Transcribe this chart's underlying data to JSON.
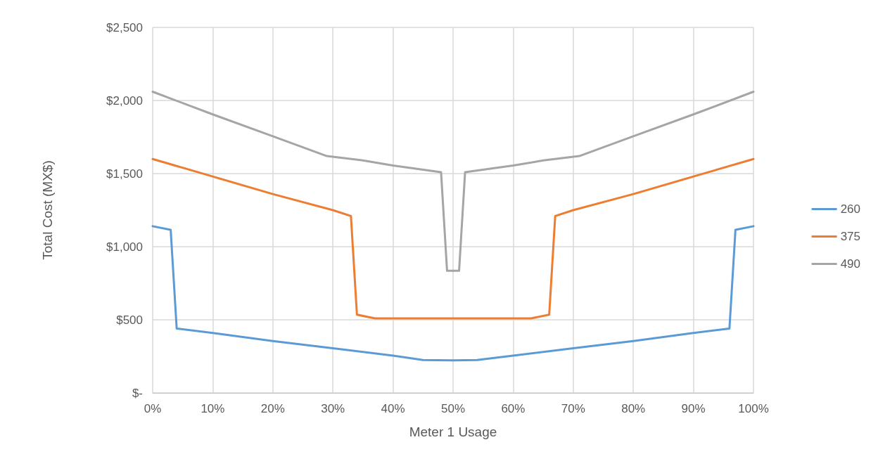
{
  "chart_data": {
    "type": "line",
    "xlabel": "Meter 1 Usage",
    "ylabel": "Total Cost (MX$)",
    "xlim": [
      0,
      100
    ],
    "xticks": [
      {
        "value": 0,
        "label": "0%"
      },
      {
        "value": 10,
        "label": "10%"
      },
      {
        "value": 20,
        "label": "20%"
      },
      {
        "value": 30,
        "label": "30%"
      },
      {
        "value": 40,
        "label": "40%"
      },
      {
        "value": 50,
        "label": "50%"
      },
      {
        "value": 60,
        "label": "60%"
      },
      {
        "value": 70,
        "label": "70%"
      },
      {
        "value": 80,
        "label": "80%"
      },
      {
        "value": 90,
        "label": "90%"
      },
      {
        "value": 100,
        "label": "100%"
      }
    ],
    "ylim": [
      0,
      2500
    ],
    "yticks": [
      {
        "value": 0,
        "label": "$-"
      },
      {
        "value": 500,
        "label": "$500"
      },
      {
        "value": 1000,
        "label": "$1,000"
      },
      {
        "value": 1500,
        "label": "$1,500"
      },
      {
        "value": 2000,
        "label": "$2,000"
      },
      {
        "value": 2500,
        "label": "$2,500"
      }
    ],
    "grid": true,
    "legend": "right",
    "marker": "none",
    "line_style": "solid",
    "series": [
      {
        "name": "260",
        "color": "#5b9bd5",
        "x": [
          0,
          3,
          4,
          10,
          20,
          30,
          40,
          45,
          50,
          54,
          60,
          70,
          80,
          90,
          96,
          97,
          100
        ],
        "values": [
          1140,
          1115,
          440,
          410,
          355,
          305,
          255,
          225,
          222,
          225,
          255,
          305,
          355,
          410,
          440,
          1115,
          1140
        ]
      },
      {
        "name": "375",
        "color": "#ed7d31",
        "x": [
          0,
          10,
          20,
          30,
          33,
          34,
          37,
          50,
          63,
          66,
          67,
          70,
          80,
          90,
          100
        ],
        "values": [
          1600,
          1480,
          1360,
          1250,
          1210,
          535,
          510,
          510,
          510,
          535,
          1210,
          1250,
          1360,
          1480,
          1600
        ]
      },
      {
        "name": "490",
        "color": "#a5a5a5",
        "x": [
          0,
          10,
          20,
          29,
          35,
          40,
          48,
          49,
          51,
          52,
          60,
          65,
          71,
          80,
          90,
          100
        ],
        "values": [
          2060,
          1905,
          1755,
          1620,
          1590,
          1555,
          1510,
          835,
          835,
          1510,
          1555,
          1590,
          1620,
          1755,
          1905,
          2060
        ]
      }
    ]
  }
}
